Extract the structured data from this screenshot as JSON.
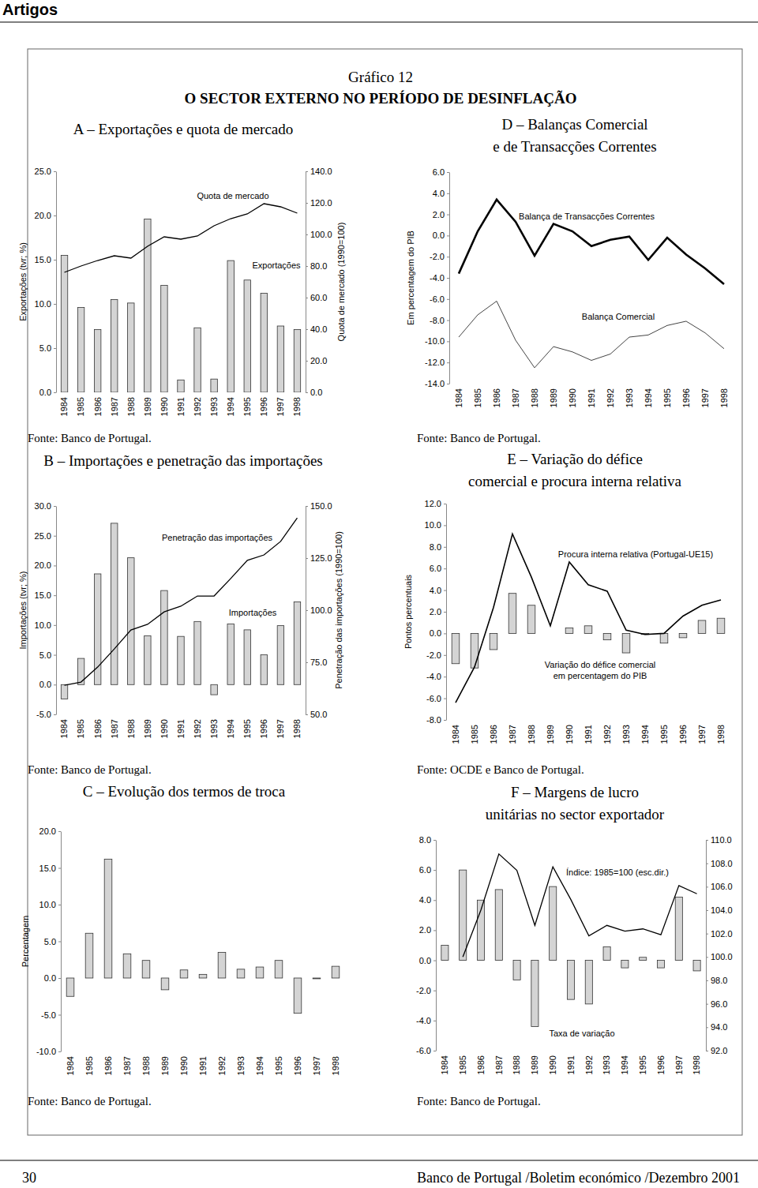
{
  "page": {
    "header": "Artigos",
    "label": "Gráfico 12",
    "title": "O SECTOR EXTERNO NO PERÍODO DE DESINFLAÇÃO",
    "page_number": "30",
    "footer": "Banco de Portugal /Boletim económico /Dezembro 2001"
  },
  "chart_data": [
    {
      "type": "combo",
      "title": "A – Exportações e quota de mercado",
      "source": "Fonte: Banco de Portugal.",
      "y_label": "Exportações (tvr; %)",
      "y2_label": "Quota de mercado (1990=100)",
      "categories": [
        "1984",
        "1985",
        "1986",
        "1987",
        "1988",
        "1989",
        "1990",
        "1991",
        "1992",
        "1993",
        "1994",
        "1995",
        "1996",
        "1997",
        "1998"
      ],
      "series": [
        {
          "name": "Exportações",
          "type": "bar",
          "color": "#d4d4d4",
          "values": [
            15.5,
            9.6,
            7.1,
            10.5,
            10.1,
            19.6,
            12.1,
            1.4,
            7.3,
            1.5,
            14.9,
            12.7,
            11.2,
            7.5,
            7.1
          ]
        },
        {
          "name": "Quota de mercado",
          "type": "line",
          "axis": "y2",
          "color": "#000000",
          "values": [
            76,
            80,
            83.5,
            86.5,
            85,
            92.5,
            98.5,
            97,
            99,
            105.5,
            110,
            113,
            119.5,
            117.5,
            113.5
          ]
        }
      ],
      "ylim": [
        0,
        25
      ],
      "yticks": [
        {
          "value": 0,
          "label": "0.0"
        },
        {
          "value": 5,
          "label": "5.0"
        },
        {
          "value": 10,
          "label": "10.0"
        },
        {
          "value": 15,
          "label": "15.0"
        },
        {
          "value": 20,
          "label": "20.0"
        },
        {
          "value": 25,
          "label": "25.0"
        }
      ],
      "y2lim": [
        0,
        140
      ],
      "y2ticks": [
        {
          "value": 0,
          "label": "0.0"
        },
        {
          "value": 20,
          "label": "20.0"
        },
        {
          "value": 40,
          "label": "40.0"
        },
        {
          "value": 60,
          "label": "60.0"
        },
        {
          "value": 80,
          "label": "80.0"
        },
        {
          "value": 100,
          "label": "100.0"
        },
        {
          "value": 120,
          "label": "120.0"
        },
        {
          "value": 140,
          "label": "140.0"
        }
      ]
    },
    {
      "type": "combo",
      "title": "B – Importações e penetração das importações",
      "source": "Fonte: Banco de Portugal.",
      "y_label": "Importações (tvr; %)",
      "y2_label": "Penetração das importações (1990=100)",
      "categories": [
        "1984",
        "1985",
        "1986",
        "1987",
        "1988",
        "1989",
        "1990",
        "1991",
        "1992",
        "1993",
        "1994",
        "1995",
        "1996",
        "1997",
        "1998"
      ],
      "series": [
        {
          "name": "Importações",
          "type": "bar",
          "color": "#d4d4d4",
          "values": [
            -2.4,
            4.4,
            18.6,
            27.1,
            21.3,
            8.2,
            15.8,
            8.1,
            10.6,
            -1.7,
            10.2,
            9.2,
            5.0,
            9.9,
            13.9
          ]
        },
        {
          "name": "Penetração das importações",
          "type": "line",
          "axis": "y2",
          "color": "#000000",
          "values": [
            64,
            65.5,
            72.7,
            81.4,
            90.5,
            93.2,
            99.2,
            101.9,
            106.8,
            106.8,
            115.2,
            123.9,
            126.5,
            133,
            144.3
          ]
        }
      ],
      "ylim": [
        -5,
        30
      ],
      "yticks": [
        {
          "value": -5,
          "label": "-5.0"
        },
        {
          "value": 0,
          "label": "0.0"
        },
        {
          "value": 5,
          "label": "5.0"
        },
        {
          "value": 10,
          "label": "10.0"
        },
        {
          "value": 15,
          "label": "15.0"
        },
        {
          "value": 20,
          "label": "20.0"
        },
        {
          "value": 25,
          "label": "25.0"
        },
        {
          "value": 30,
          "label": "30.0"
        }
      ],
      "y2lim": [
        50,
        150
      ],
      "y2ticks": [
        {
          "value": 50,
          "label": "50.0"
        },
        {
          "value": 75,
          "label": "75.0"
        },
        {
          "value": 100,
          "label": "100.0"
        },
        {
          "value": 125,
          "label": "125.0"
        },
        {
          "value": 150,
          "label": "150.0"
        }
      ]
    },
    {
      "type": "bar",
      "title": "C – Evolução dos termos de troca",
      "source": "Fonte: Banco de Portugal.",
      "y_label": "Percentagem",
      "categories": [
        "1984",
        "1985",
        "1986",
        "1987",
        "1988",
        "1989",
        "1990",
        "1991",
        "1992",
        "1993",
        "1994",
        "1995",
        "1996",
        "1997",
        "1998"
      ],
      "values": [
        -2.5,
        6.1,
        16.2,
        3.3,
        2.4,
        -1.6,
        1.1,
        0.5,
        3.5,
        1.2,
        1.5,
        2.4,
        -4.8,
        -0.1,
        1.6
      ],
      "color": "#d4d4d4",
      "ylim": [
        -10,
        20
      ],
      "yticks": [
        {
          "value": -10,
          "label": "-10.0"
        },
        {
          "value": -5,
          "label": "-5.0"
        },
        {
          "value": 0,
          "label": "0.0"
        },
        {
          "value": 5,
          "label": "5.0"
        },
        {
          "value": 10,
          "label": "10.0"
        },
        {
          "value": 15,
          "label": "15.0"
        },
        {
          "value": 20,
          "label": "20.0"
        }
      ]
    },
    {
      "type": "line",
      "title": "D – Balanças Comercial e de Transacções Correntes",
      "source": "Fonte: Banco de Portugal.",
      "y_label": "Em percentagem do PIB",
      "categories": [
        "1984",
        "1985",
        "1986",
        "1987",
        "1988",
        "1989",
        "1990",
        "1991",
        "1992",
        "1993",
        "1994",
        "1995",
        "1996",
        "1997",
        "1998"
      ],
      "series": [
        {
          "name": "Balança de Transacções Correntes",
          "color": "#000000",
          "values": [
            -3.6,
            0.4,
            3.4,
            1.3,
            -1.9,
            1.1,
            0.4,
            -1.0,
            -0.4,
            -0.1,
            -2.3,
            -0.2,
            -1.8,
            -3.1,
            -4.6
          ]
        },
        {
          "name": "Balança Comercial",
          "color": "#444444",
          "values": [
            -9.6,
            -7.5,
            -6.2,
            -9.9,
            -12.5,
            -10.5,
            -11.0,
            -11.8,
            -11.2,
            -9.6,
            -9.4,
            -8.5,
            -8.1,
            -9.2,
            -10.7
          ]
        }
      ],
      "ylim": [
        -14,
        6
      ],
      "yticks": [
        {
          "value": -14,
          "label": "-14.0"
        },
        {
          "value": -12,
          "label": "-12.0"
        },
        {
          "value": -10,
          "label": "-10.0"
        },
        {
          "value": -8,
          "label": "-8.0"
        },
        {
          "value": -6,
          "label": "-6.0"
        },
        {
          "value": -4,
          "label": "-4.0"
        },
        {
          "value": -2,
          "label": "-2.0"
        },
        {
          "value": 0,
          "label": "0.0"
        },
        {
          "value": 2,
          "label": "2.0"
        },
        {
          "value": 4,
          "label": "4.0"
        },
        {
          "value": 6,
          "label": "6.0"
        }
      ]
    },
    {
      "type": "combo",
      "title": "E – Variação do défice comercial e procura interna relativa",
      "source": "Fonte: OCDE e Banco de Portugal.",
      "y_label": "Pontos percentuais",
      "categories": [
        "1984",
        "1985",
        "1986",
        "1987",
        "1988",
        "1989",
        "1990",
        "1991",
        "1992",
        "1993",
        "1994",
        "1995",
        "1996",
        "1997",
        "1998"
      ],
      "series": [
        {
          "name": "Variação do défice comercial em percentagem do PIB",
          "type": "bar",
          "color": "#d4d4d4",
          "values": [
            -2.8,
            -3.2,
            -1.5,
            3.7,
            2.6,
            0.0,
            0.5,
            0.7,
            -0.6,
            -1.8,
            -0.1,
            -0.9,
            -0.4,
            1.2,
            1.4
          ]
        },
        {
          "name": "Procura interna relativa (Portugal-UE15)",
          "type": "line",
          "color": "#000000",
          "values": [
            -6.4,
            -3.1,
            2.4,
            9.2,
            5.2,
            0.7,
            6.6,
            4.5,
            3.9,
            0.3,
            -0.1,
            0.0,
            1.6,
            2.6,
            3.1
          ]
        }
      ],
      "ylim": [
        -8,
        12
      ],
      "yticks": [
        {
          "value": -8,
          "label": "-8.0"
        },
        {
          "value": -6,
          "label": "-6.0"
        },
        {
          "value": -4,
          "label": "-4.0"
        },
        {
          "value": -2,
          "label": "-2.0"
        },
        {
          "value": 0,
          "label": "0.0"
        },
        {
          "value": 2,
          "label": "2.0"
        },
        {
          "value": 4,
          "label": "4.0"
        },
        {
          "value": 6,
          "label": "6.0"
        },
        {
          "value": 8,
          "label": "8.0"
        },
        {
          "value": 10,
          "label": "10.0"
        },
        {
          "value": 12,
          "label": "12.0"
        }
      ]
    },
    {
      "type": "combo",
      "title": "F – Margens de lucro unitárias no sector exportador",
      "source": "Fonte: Banco de Portugal.",
      "categories": [
        "1984",
        "1985",
        "1986",
        "1987",
        "1988",
        "1989",
        "1990",
        "1991",
        "1992",
        "1993",
        "1994",
        "1995",
        "1996",
        "1997",
        "1998"
      ],
      "series": [
        {
          "name": "Taxa de variação",
          "type": "bar",
          "color": "#d4d4d4",
          "values": [
            1.0,
            6.0,
            4.0,
            4.7,
            -1.3,
            -4.4,
            4.9,
            -2.6,
            -2.9,
            0.9,
            -0.5,
            0.2,
            -0.5,
            4.2,
            -0.7
          ]
        },
        {
          "name": "Índice: 1985=100 (esc.dir.)",
          "type": "line",
          "axis": "y2",
          "color": "#000000",
          "values": [
            null,
            100,
            104.0,
            108.8,
            107.4,
            102.7,
            107.7,
            104.9,
            101.8,
            102.7,
            102.2,
            102.4,
            101.9,
            106.1,
            105.4
          ]
        }
      ],
      "ylim": [
        -6,
        8
      ],
      "yticks": [
        {
          "value": -6,
          "label": "-6.0"
        },
        {
          "value": -4,
          "label": "-4.0"
        },
        {
          "value": -2,
          "label": "-2.0"
        },
        {
          "value": 0,
          "label": "0.0"
        },
        {
          "value": 2,
          "label": "2.0"
        },
        {
          "value": 4,
          "label": "4.0"
        },
        {
          "value": 6,
          "label": "6.0"
        },
        {
          "value": 8,
          "label": "8.0"
        }
      ],
      "y2lim": [
        92,
        110
      ],
      "y2ticks": [
        {
          "value": 92,
          "label": "92.0"
        },
        {
          "value": 94,
          "label": "94.0"
        },
        {
          "value": 96,
          "label": "96.0"
        },
        {
          "value": 98,
          "label": "98.0"
        },
        {
          "value": 100,
          "label": "100.0"
        },
        {
          "value": 102,
          "label": "102.0"
        },
        {
          "value": 104,
          "label": "104.0"
        },
        {
          "value": 106,
          "label": "106.0"
        },
        {
          "value": 108,
          "label": "108.0"
        },
        {
          "value": 110,
          "label": "110.0"
        }
      ]
    }
  ]
}
